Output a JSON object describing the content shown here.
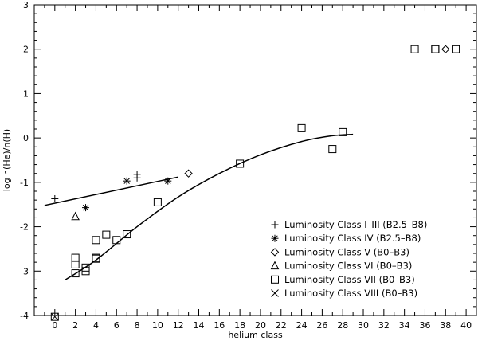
{
  "chart_data": {
    "type": "scatter",
    "title": "",
    "xlabel": "helium class",
    "ylabel": "log n(He)/n(H)",
    "xlim": [
      -2,
      41
    ],
    "ylim": [
      -4,
      3
    ],
    "xticks": [
      0,
      2,
      4,
      6,
      8,
      10,
      12,
      14,
      16,
      18,
      20,
      22,
      24,
      26,
      28,
      30,
      32,
      34,
      36,
      38,
      40
    ],
    "yticks": [
      -4,
      -3,
      -2,
      -1,
      0,
      1,
      2,
      3
    ],
    "grid": false,
    "legend_position": "bottom-right",
    "series": [
      {
        "name": "Luminosity Class I–III (B2.5–B8)",
        "marker": "plus",
        "points": [
          [
            0,
            -1.37
          ],
          [
            8,
            -0.9
          ],
          [
            8,
            -0.82
          ]
        ]
      },
      {
        "name": "Luminosity Class IV (B2.5–B8)",
        "marker": "asterisk",
        "points": [
          [
            3,
            -1.57
          ],
          [
            7,
            -0.97
          ],
          [
            11,
            -0.97
          ]
        ]
      },
      {
        "name": "Luminosity Class V (B0–B3)",
        "marker": "diamond",
        "points": [
          [
            13,
            -0.8
          ],
          [
            38,
            2.0
          ]
        ]
      },
      {
        "name": "Luminosity Class VI (B0–B3)",
        "marker": "triangle",
        "points": [
          [
            2,
            -1.77
          ]
        ]
      },
      {
        "name": "Luminosity Class VII (B0–B3)",
        "marker": "square",
        "points": [
          [
            2,
            -3.05
          ],
          [
            2,
            -2.85
          ],
          [
            2,
            -2.7
          ],
          [
            3,
            -3.0
          ],
          [
            3,
            -2.92
          ],
          [
            4,
            -2.72
          ],
          [
            4,
            -2.7
          ],
          [
            4,
            -2.3
          ],
          [
            5,
            -2.18
          ],
          [
            6,
            -2.3
          ],
          [
            7,
            -2.17
          ],
          [
            10,
            -1.45
          ],
          [
            18,
            -0.58
          ],
          [
            24,
            0.22
          ],
          [
            27,
            -0.25
          ],
          [
            28,
            0.13
          ],
          [
            35,
            2.0
          ],
          [
            37,
            2.0
          ],
          [
            37,
            2.0
          ],
          [
            39,
            2.0
          ],
          [
            39,
            2.0
          ],
          [
            0,
            -4.03
          ]
        ]
      },
      {
        "name": "Luminosity Class VIII (B0–B3)",
        "marker": "cross",
        "points": [
          [
            0,
            -4.03
          ]
        ]
      }
    ],
    "fits": [
      {
        "points": [
          [
            -1,
            -1.52
          ],
          [
            12,
            -0.88
          ]
        ]
      },
      {
        "points": [
          [
            1,
            -3.2
          ],
          [
            4,
            -2.75
          ],
          [
            8,
            -2.0
          ],
          [
            12,
            -1.33
          ],
          [
            16,
            -0.8
          ],
          [
            20,
            -0.38
          ],
          [
            24,
            -0.08
          ],
          [
            27,
            0.05
          ],
          [
            29,
            0.08
          ]
        ]
      }
    ]
  }
}
